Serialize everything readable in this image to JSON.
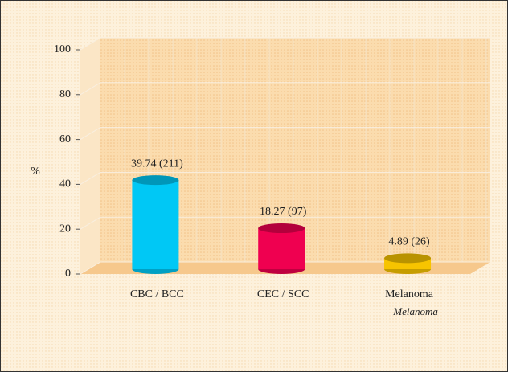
{
  "chart_data": {
    "type": "bar",
    "y_label": "%",
    "categories": [
      "CBC / BCC",
      "CEC / SCC",
      "Melanoma"
    ],
    "x_sublabels": [
      null,
      null,
      "Melanoma"
    ],
    "values": [
      39.74,
      18.27,
      4.89
    ],
    "value_labels": [
      "39.74 (211)",
      "18.27 (97)",
      "4.89 (26)"
    ],
    "colors": [
      "#00c8f5",
      "#ef0050",
      "#f7c400"
    ],
    "ylim": [
      0,
      100
    ],
    "yticks": [
      0,
      20,
      40,
      60,
      80,
      100
    ],
    "grid": true
  }
}
